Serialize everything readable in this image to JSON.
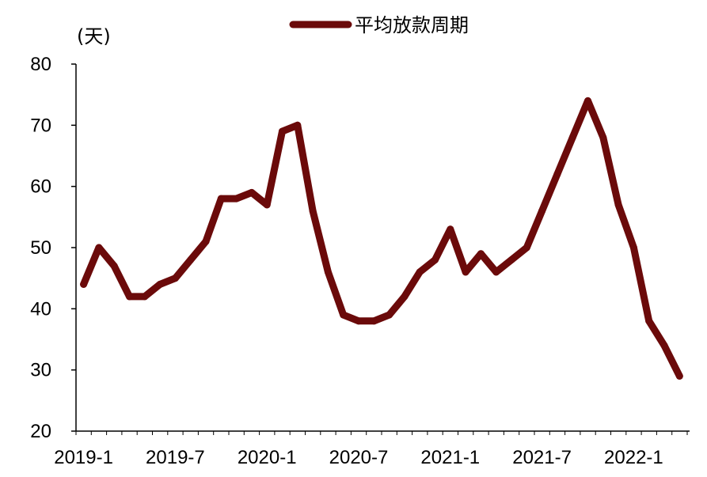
{
  "chart_data": {
    "type": "line",
    "ylabel": "(天)",
    "ylim": [
      20,
      80
    ],
    "yticks": [
      20,
      30,
      40,
      50,
      60,
      70,
      80
    ],
    "xtick_labels": [
      "2019-1",
      "2019-7",
      "2020-1",
      "2020-7",
      "2021-1",
      "2021-7",
      "2022-1"
    ],
    "legend_position": "top-center",
    "grid": false,
    "colors": {
      "series": "#6b0a0a",
      "axis": "#000000"
    },
    "series": [
      {
        "name": "平均放款周期",
        "values": [
          44,
          50,
          47,
          42,
          42,
          44,
          45,
          48,
          51,
          58,
          58,
          59,
          57,
          69,
          70,
          56,
          46,
          39,
          38,
          38,
          39,
          42,
          46,
          48,
          53,
          46,
          49,
          46,
          48,
          50,
          56,
          62,
          68,
          74,
          68,
          57,
          50,
          38,
          34,
          29
        ]
      }
    ]
  }
}
